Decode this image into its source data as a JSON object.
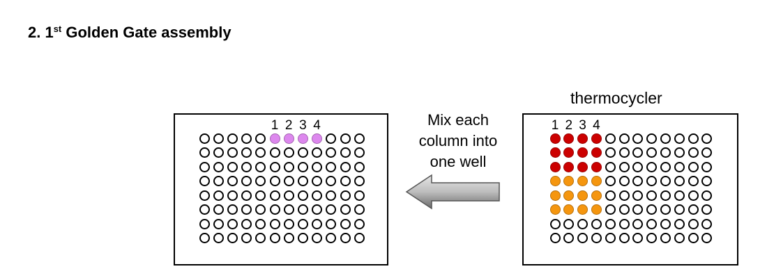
{
  "heading": {
    "prefix": "2. 1",
    "sup": "st",
    "rest": " Golden Gate assembly"
  },
  "machine_label": "thermocycler",
  "arrow_text": {
    "line1": "Mix each",
    "line2": "column into",
    "line3": "one well"
  },
  "left_plate": {
    "rows": 8,
    "cols": 12,
    "column_numbers": [
      "1",
      "2",
      "3",
      "4"
    ],
    "fill": {
      "row": 1,
      "cols": [
        6,
        7,
        8,
        9
      ],
      "color": "#dd88ee"
    }
  },
  "right_plate": {
    "rows": 8,
    "cols": 12,
    "column_numbers": [
      "1",
      "2",
      "3",
      "4"
    ],
    "fills": [
      {
        "rows": [
          1,
          2,
          3
        ],
        "cols": [
          1,
          2,
          3,
          4
        ],
        "color": "#cc0000"
      },
      {
        "rows": [
          4,
          5,
          6
        ],
        "cols": [
          1,
          2,
          3,
          4
        ],
        "color": "#f5960f"
      }
    ]
  },
  "colors": {
    "outline": "#000000",
    "arrow_dark": "#555555",
    "arrow_light": "#e6e6e6"
  }
}
